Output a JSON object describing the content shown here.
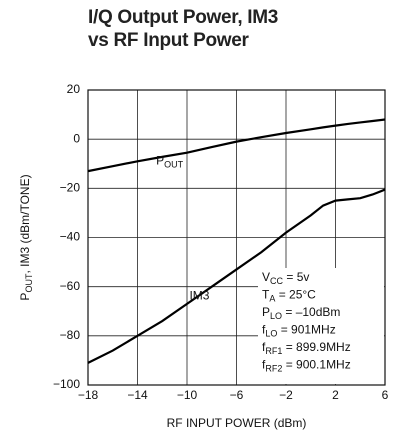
{
  "chart_data": {
    "type": "line",
    "title": "I/Q Output Power, IM3 vs RF Input Power",
    "x_label": "RF INPUT POWER (dBm)",
    "y_label": {
      "main": "P",
      "sub": "OUT",
      "rest": ", IM3 (dBm/TONE)"
    },
    "x": [
      -18,
      -16,
      -14,
      -12,
      -10,
      -8,
      -6,
      -4,
      -2,
      0,
      1,
      2,
      3,
      4,
      5,
      6
    ],
    "series": [
      {
        "label": {
          "main": "P",
          "sub": "OUT"
        },
        "color": "#000000",
        "values": [
          -13,
          -11,
          -9,
          -7.2,
          -5.5,
          -3.2,
          -1,
          0.8,
          2.5,
          4,
          4.8,
          5.5,
          6.2,
          6.8,
          7.4,
          8
        ]
      },
      {
        "label": {
          "main": "IM3"
        },
        "color": "#000000",
        "values": [
          -91,
          -86,
          -80,
          -74,
          -67,
          -60,
          -53,
          -46,
          -38,
          -31,
          -27,
          -25,
          -24.5,
          -24,
          -22.5,
          -20.5
        ]
      }
    ],
    "xlim": [
      -18,
      6
    ],
    "ylim": [
      -100,
      20
    ],
    "xticks": [
      {
        "value": -18,
        "label": "−18"
      },
      {
        "value": -14,
        "label": "−14"
      },
      {
        "value": -10,
        "label": "−10"
      },
      {
        "value": -6,
        "label": "−6"
      },
      {
        "value": -2,
        "label": "−2"
      },
      2,
      6
    ],
    "yticks": [
      {
        "value": -100,
        "label": "−100"
      },
      {
        "value": -80,
        "label": "−80"
      },
      {
        "value": -60,
        "label": "−60"
      },
      {
        "value": -40,
        "label": "−40"
      },
      {
        "value": -20,
        "label": "−20"
      },
      0,
      20
    ],
    "grid": true,
    "annotations": [
      {
        "main": "V",
        "sub": "CC",
        "rest": " = 5v"
      },
      {
        "main": "T",
        "sub": "A",
        "rest": " = 25°C"
      },
      {
        "main": "P",
        "sub": "LO",
        "rest": " = –10dBm"
      },
      {
        "main": "f",
        "sub": "LO",
        "rest": " = 901MHz"
      },
      {
        "main": "f",
        "sub": "RF1",
        "rest": " = 899.9MHz"
      },
      {
        "main": "f",
        "sub": "RF2",
        "rest": " = 900.1MHz"
      }
    ]
  }
}
